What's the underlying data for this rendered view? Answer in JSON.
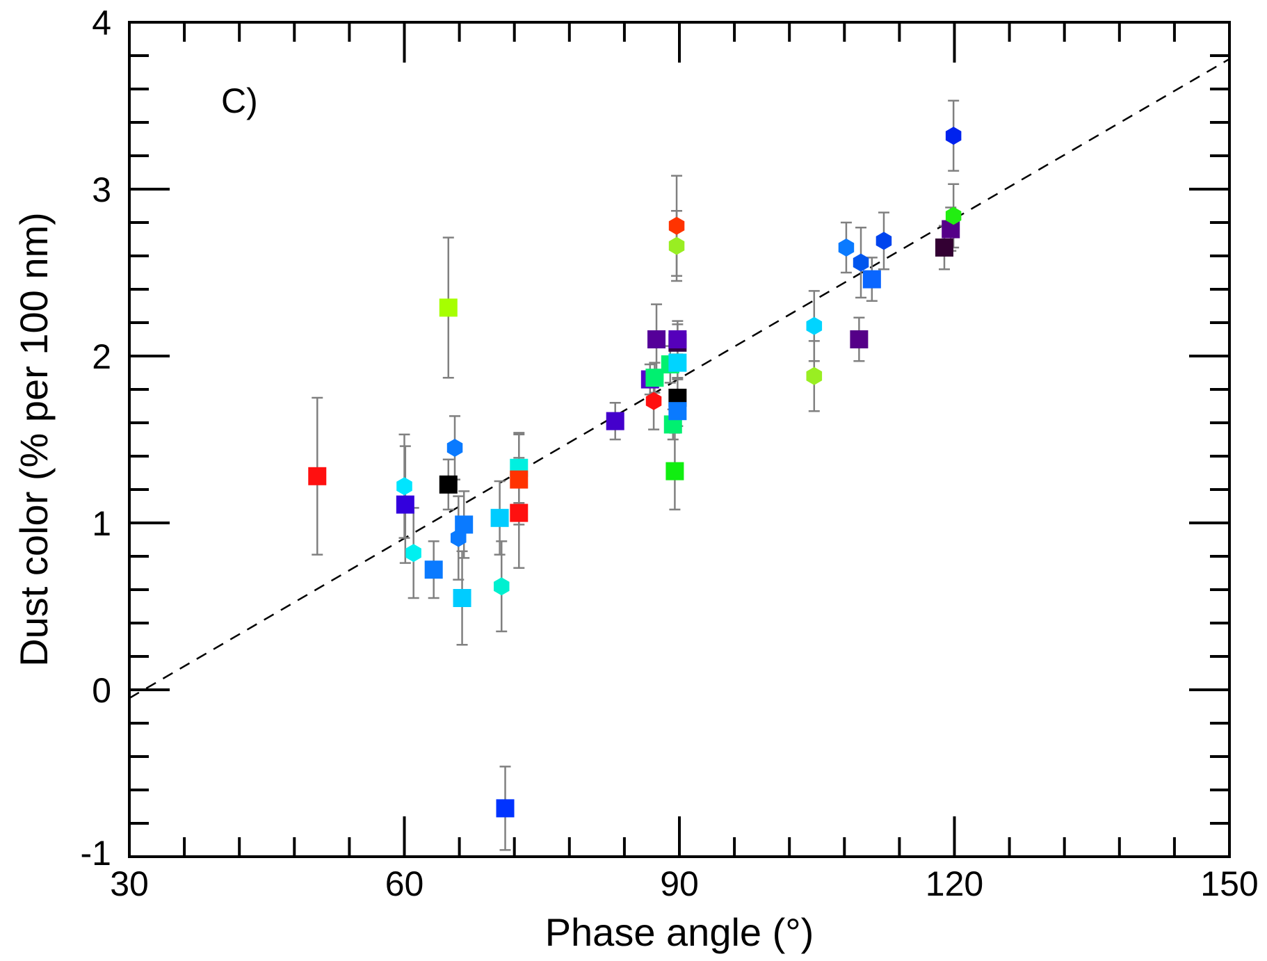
{
  "chart_data": {
    "type": "scatter",
    "title": "",
    "panel_label": "C)",
    "xlabel": "Phase angle (°)",
    "ylabel": "Dust color (% per 100 nm)",
    "xlim": [
      30,
      150
    ],
    "ylim": [
      -1,
      4
    ],
    "x_ticks": [
      30,
      60,
      90,
      120,
      150
    ],
    "y_ticks": [
      -1,
      0,
      1,
      2,
      3,
      4
    ],
    "x_tick_labels": [
      "30",
      "60",
      "90",
      "120",
      "150"
    ],
    "y_tick_labels": [
      "-1",
      "0",
      "1",
      "2",
      "3",
      "4"
    ],
    "x_minor_step": 6,
    "y_minor_step": 0.2,
    "grid": false,
    "error_bar_color": "#808080",
    "fit_line": {
      "style": "dashed",
      "color": "#000000",
      "x": [
        30,
        150
      ],
      "y": [
        -0.05,
        3.78
      ]
    },
    "points": [
      {
        "x": 50.5,
        "y": 1.28,
        "err": 0.47,
        "marker": "square",
        "color": "#ff1010"
      },
      {
        "x": 60.0,
        "y": 1.22,
        "err": 0.31,
        "marker": "hexagon",
        "color": "#00e5ff"
      },
      {
        "x": 60.1,
        "y": 1.11,
        "err": 0.35,
        "marker": "square",
        "color": "#3300dd"
      },
      {
        "x": 61.0,
        "y": 0.82,
        "err": 0.27,
        "marker": "hexagon",
        "color": "#00f0f0"
      },
      {
        "x": 63.2,
        "y": 0.72,
        "err": 0.17,
        "marker": "square",
        "color": "#0a7aff"
      },
      {
        "x": 64.8,
        "y": 1.23,
        "err": 0.15,
        "marker": "square",
        "color": "#000000"
      },
      {
        "x": 64.8,
        "y": 2.29,
        "err": 0.42,
        "marker": "square",
        "color": "#a6ff00"
      },
      {
        "x": 65.5,
        "y": 1.45,
        "err": 0.19,
        "marker": "hexagon",
        "color": "#0a7aff"
      },
      {
        "x": 65.9,
        "y": 0.91,
        "err": 0.25,
        "marker": "hexagon",
        "color": "#0a7aff"
      },
      {
        "x": 66.3,
        "y": 0.55,
        "err": 0.28,
        "marker": "square",
        "color": "#00ccff"
      },
      {
        "x": 66.5,
        "y": 0.99,
        "err": 0.2,
        "marker": "square",
        "color": "#0a7aff"
      },
      {
        "x": 70.4,
        "y": 1.03,
        "err": 0.22,
        "marker": "square",
        "color": "#00ccff"
      },
      {
        "x": 70.6,
        "y": 0.62,
        "err": 0.27,
        "marker": "hexagon",
        "color": "#00f0d0"
      },
      {
        "x": 71.0,
        "y": -0.71,
        "err": 0.25,
        "marker": "square",
        "color": "#0033ff"
      },
      {
        "x": 72.5,
        "y": 1.33,
        "err": 0.21,
        "marker": "square",
        "color": "#00f0e0"
      },
      {
        "x": 72.5,
        "y": 1.26,
        "err": 0.27,
        "marker": "square",
        "color": "#ff3300"
      },
      {
        "x": 72.5,
        "y": 1.06,
        "err": 0.33,
        "marker": "square",
        "color": "#ff1010"
      },
      {
        "x": 83.0,
        "y": 1.61,
        "err": 0.11,
        "marker": "square",
        "color": "#4400cc"
      },
      {
        "x": 86.8,
        "y": 1.86,
        "err": 0.09,
        "marker": "square",
        "color": "#5500cc"
      },
      {
        "x": 87.2,
        "y": 1.73,
        "err": 0.17,
        "marker": "hexagon",
        "color": "#ff1010"
      },
      {
        "x": 87.3,
        "y": 1.87,
        "err": 0.09,
        "marker": "square",
        "color": "#00f070"
      },
      {
        "x": 87.5,
        "y": 2.1,
        "err": 0.21,
        "marker": "square",
        "color": "#550099"
      },
      {
        "x": 89.0,
        "y": 1.95,
        "err": 0.11,
        "marker": "square",
        "color": "#00f070"
      },
      {
        "x": 89.3,
        "y": 1.59,
        "err": 0.09,
        "marker": "square",
        "color": "#00f070"
      },
      {
        "x": 89.5,
        "y": 1.31,
        "err": 0.23,
        "marker": "square",
        "color": "#11ee11"
      },
      {
        "x": 89.7,
        "y": 2.78,
        "err": 0.3,
        "marker": "hexagon",
        "color": "#ff3300"
      },
      {
        "x": 89.7,
        "y": 2.66,
        "err": 0.21,
        "marker": "hexagon",
        "color": "#99ee22"
      },
      {
        "x": 89.8,
        "y": 2.08,
        "err": 0.13,
        "marker": "square",
        "color": "#330044"
      },
      {
        "x": 89.8,
        "y": 2.1,
        "err": 0.09,
        "marker": "square",
        "color": "#5500bb"
      },
      {
        "x": 89.8,
        "y": 1.96,
        "err": 0.09,
        "marker": "square",
        "color": "#00d4ff"
      },
      {
        "x": 89.8,
        "y": 1.75,
        "err": 0.11,
        "marker": "square",
        "color": "#000000"
      },
      {
        "x": 89.8,
        "y": 1.67,
        "err": 0.09,
        "marker": "square",
        "color": "#0a7aff"
      },
      {
        "x": 104.7,
        "y": 2.18,
        "err": 0.21,
        "marker": "hexagon",
        "color": "#00d4ff"
      },
      {
        "x": 104.7,
        "y": 1.88,
        "err": 0.21,
        "marker": "hexagon",
        "color": "#99ee22"
      },
      {
        "x": 108.2,
        "y": 2.65,
        "err": 0.15,
        "marker": "hexagon",
        "color": "#0a7aff"
      },
      {
        "x": 109.6,
        "y": 2.1,
        "err": 0.13,
        "marker": "square",
        "color": "#550088"
      },
      {
        "x": 109.8,
        "y": 2.56,
        "err": 0.21,
        "marker": "hexagon",
        "color": "#0055ee"
      },
      {
        "x": 111.0,
        "y": 2.46,
        "err": 0.13,
        "marker": "square",
        "color": "#0a66ff"
      },
      {
        "x": 112.3,
        "y": 2.69,
        "err": 0.17,
        "marker": "hexagon",
        "color": "#0044ee"
      },
      {
        "x": 118.9,
        "y": 2.65,
        "err": 0.13,
        "marker": "square",
        "color": "#330033"
      },
      {
        "x": 119.6,
        "y": 2.76,
        "err": 0.13,
        "marker": "square",
        "color": "#550088"
      },
      {
        "x": 119.9,
        "y": 2.84,
        "err": 0.19,
        "marker": "hexagon",
        "color": "#22ee11"
      },
      {
        "x": 119.9,
        "y": 3.32,
        "err": 0.21,
        "marker": "hexagon",
        "color": "#0022ee"
      }
    ]
  }
}
